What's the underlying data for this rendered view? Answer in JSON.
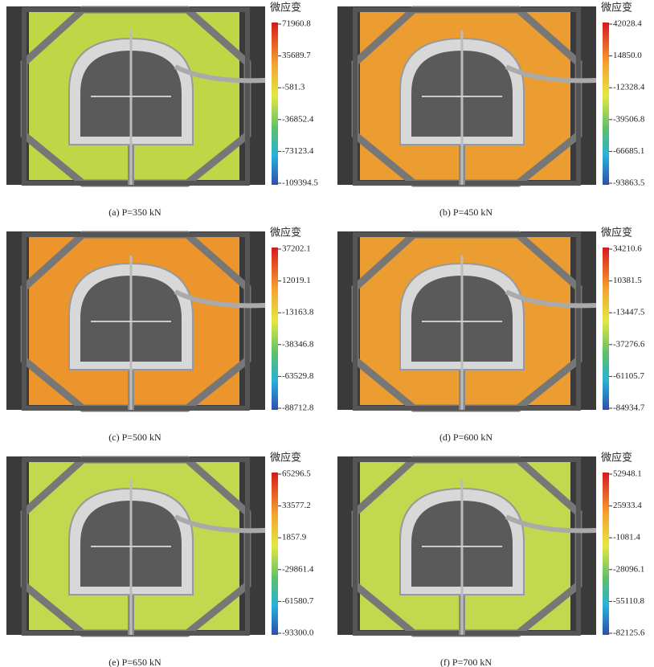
{
  "panels": [
    {
      "colorbar_title": "微应变",
      "ticks": [
        "71960.8",
        "35689.7",
        "-581.3",
        "-36852.4",
        "-73123.4",
        "-109394.5"
      ],
      "caption": "(a) P=350 kN"
    },
    {
      "colorbar_title": "微应变",
      "ticks": [
        "42028.4",
        "14850.0",
        "-12328.4",
        "-39506.8",
        "-66685.1",
        "-93863.5"
      ],
      "caption": "(b) P=450 kN"
    },
    {
      "colorbar_title": "微应变",
      "ticks": [
        "37202.1",
        "12019.1",
        "-13163.8",
        "-38346.8",
        "-63529.8",
        "-88712.8"
      ],
      "caption": "(c) P=500 kN"
    },
    {
      "colorbar_title": "微应变",
      "ticks": [
        "34210.6",
        "10381.5",
        "-13447.5",
        "-37276.6",
        "-61105.7",
        "-84934.7"
      ],
      "caption": "(d) P=600 kN"
    },
    {
      "colorbar_title": "微应变",
      "ticks": [
        "65296.5",
        "33577.2",
        "1857.9",
        "-29861.4",
        "-61580.7",
        "-93300.0"
      ],
      "caption": "(e) P=650 kN"
    },
    {
      "colorbar_title": "微应变",
      "ticks": [
        "52948.1",
        "25933.4",
        "-1081.4",
        "-28096.1",
        "-55110.8",
        "-82125.6"
      ],
      "caption": "(f) P=700 kN"
    }
  ]
}
